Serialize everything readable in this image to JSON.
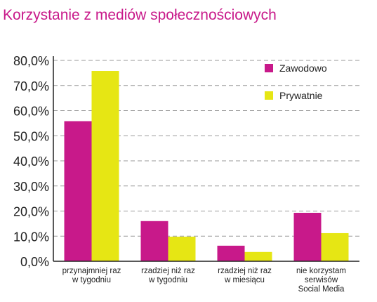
{
  "chart_data": {
    "type": "bar",
    "title": "Korzystanie z mediów społecznościowych",
    "xlabel": "",
    "ylabel": "",
    "ylim": [
      0,
      80
    ],
    "y_ticks": [
      0,
      10,
      20,
      30,
      40,
      50,
      60,
      70,
      80
    ],
    "y_tick_labels": [
      "0,0%",
      "10,0%",
      "20,0%",
      "30,0%",
      "40,0%",
      "50,0%",
      "60,0%",
      "70,0%",
      "80,0%"
    ],
    "grid": "dashed horizontal",
    "legend_position": "top-right",
    "categories": [
      [
        "przynajmniej raz",
        "w tygodniu"
      ],
      [
        "rzadziej niż raz",
        "w tygodniu"
      ],
      [
        "rzadziej niż raz",
        "w miesiącu"
      ],
      [
        "nie korzystam",
        "serwisów",
        "Social Media"
      ]
    ],
    "series": [
      {
        "name": "Zawodowo",
        "color": "#c8198a",
        "values": [
          55.8,
          16.0,
          6.2,
          19.3
        ]
      },
      {
        "name": "Prywatnie",
        "color": "#e6e614",
        "values": [
          75.8,
          9.8,
          3.7,
          11.2
        ]
      }
    ]
  },
  "colors": {
    "title": "#c8198a",
    "axis": "#222222",
    "grid": "#999999"
  }
}
